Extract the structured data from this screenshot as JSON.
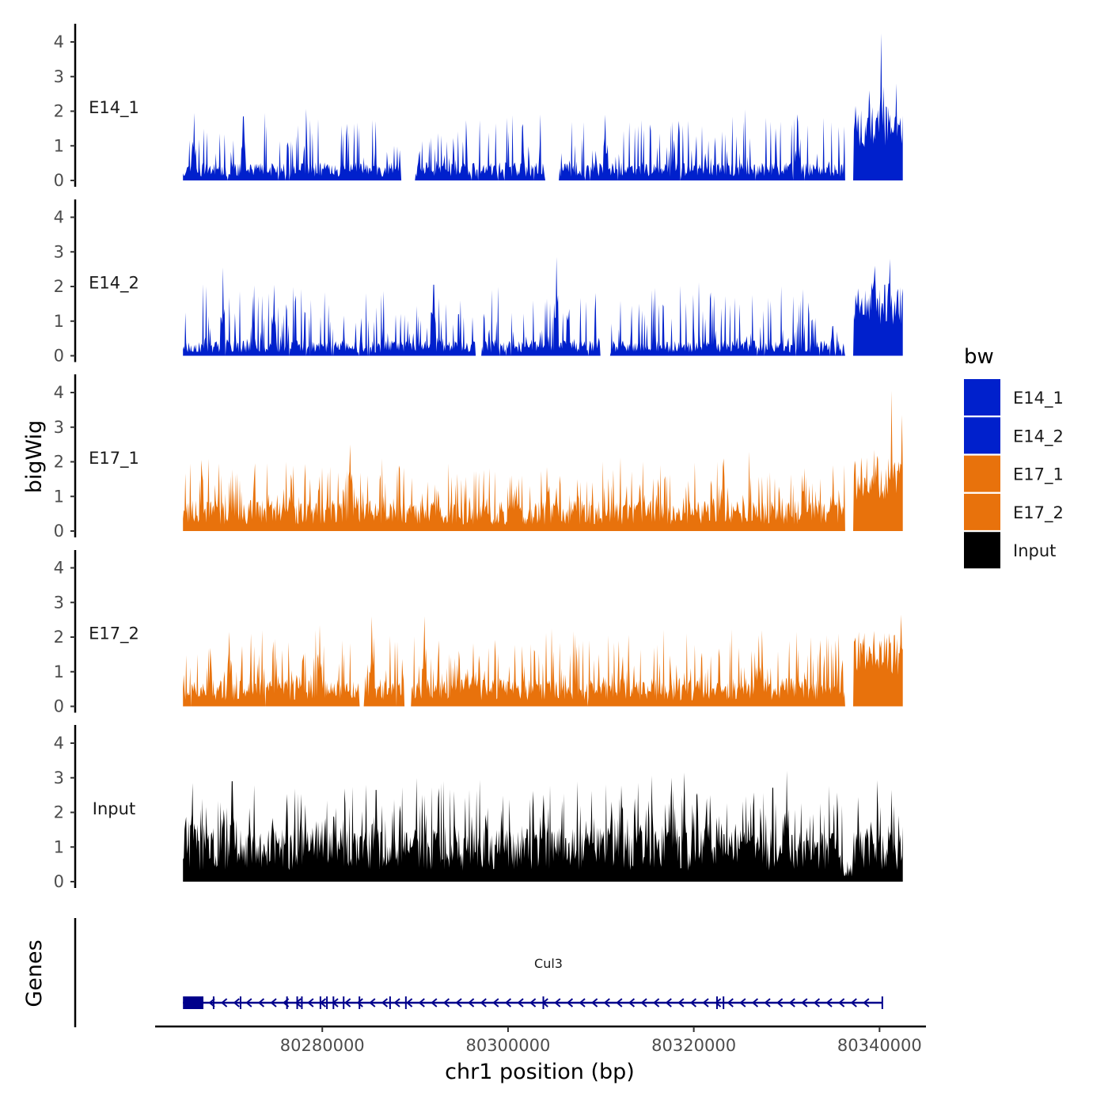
{
  "chart_data": {
    "type": "area",
    "chromosome": "chr1",
    "xlabel": "chr1 position (bp)",
    "ylabel": "bigWig",
    "genes_label": "Genes",
    "region": [
      80265000,
      80342500
    ],
    "xlim": [
      80262000,
      80345000
    ],
    "ylim": [
      0,
      4.5
    ],
    "y_ticks": [
      0,
      1,
      2,
      3,
      4
    ],
    "x_ticks": [
      80280000,
      80300000,
      80320000,
      80340000
    ],
    "legend": {
      "title": "bw",
      "entries": [
        {
          "name": "E14_1",
          "color": "#0020CC"
        },
        {
          "name": "E14_2",
          "color": "#0020CC"
        },
        {
          "name": "E17_1",
          "color": "#E8720C"
        },
        {
          "name": "E17_2",
          "color": "#E8720C"
        },
        {
          "name": "Input",
          "color": "#000000"
        }
      ]
    },
    "series": [
      {
        "name": "E14_1",
        "color": "#0020CC",
        "seed": 11,
        "base": 0.35,
        "spike_max": 1.6,
        "spike_prob": 0.22,
        "gap_prob": 0.05,
        "peaks": [
          [
            80340200,
            4.25
          ],
          [
            80341800,
            2.8
          ],
          [
            80338900,
            2.6
          ],
          [
            80331200,
            1.7
          ],
          [
            80310500,
            1.9
          ],
          [
            80266200,
            1.95
          ],
          [
            80271500,
            1.85
          ]
        ],
        "gaps": [
          [
            80288500,
            80290000
          ],
          [
            80304000,
            80305500
          ],
          [
            80336300,
            80337200
          ]
        ]
      },
      {
        "name": "E14_2",
        "color": "#0020CC",
        "seed": 23,
        "base": 0.3,
        "spike_max": 1.7,
        "spike_prob": 0.24,
        "gap_prob": 0.06,
        "peaks": [
          [
            80305200,
            2.85
          ],
          [
            80341100,
            2.8
          ],
          [
            80269300,
            2.55
          ],
          [
            80339500,
            2.6
          ],
          [
            80292000,
            2.05
          ],
          [
            80274800,
            2.05
          ]
        ],
        "gaps": [
          [
            80296500,
            80297200
          ],
          [
            80310000,
            80311000
          ],
          [
            80336300,
            80337200
          ]
        ]
      },
      {
        "name": "E17_1",
        "color": "#E8720C",
        "seed": 37,
        "base": 0.6,
        "spike_max": 1.4,
        "spike_prob": 0.3,
        "gap_prob": 0.0,
        "peaks": [
          [
            80341300,
            4.05
          ],
          [
            80342400,
            3.35
          ],
          [
            80283000,
            2.5
          ],
          [
            80304200,
            1.85
          ],
          [
            80335000,
            1.9
          ],
          [
            80339400,
            2.35
          ]
        ],
        "gaps": [
          [
            80336300,
            80337200
          ]
        ]
      },
      {
        "name": "E17_2",
        "color": "#E8720C",
        "seed": 53,
        "base": 0.55,
        "spike_max": 1.5,
        "spike_prob": 0.3,
        "gap_prob": 0.02,
        "peaks": [
          [
            80291000,
            2.6
          ],
          [
            80285300,
            2.6
          ],
          [
            80342300,
            2.65
          ],
          [
            80279700,
            2.35
          ],
          [
            80270000,
            2.15
          ],
          [
            80327000,
            2.05
          ]
        ],
        "gaps": [
          [
            80284000,
            80284500
          ],
          [
            80288800,
            80289600
          ],
          [
            80336300,
            80337200
          ]
        ]
      },
      {
        "name": "Input",
        "color": "#000000",
        "seed": 71,
        "base": 1.05,
        "spike_max": 1.6,
        "spike_prob": 0.35,
        "gap_prob": 0.0,
        "peaks": [
          [
            80330000,
            3.2
          ],
          [
            80319000,
            3.15
          ],
          [
            80270300,
            2.9
          ],
          [
            80266000,
            2.85
          ],
          [
            80314000,
            2.85
          ],
          [
            80285800,
            2.65
          ]
        ],
        "gaps": []
      }
    ],
    "gene": {
      "name": "Cul3",
      "strand": "-",
      "start": 80265000,
      "end": 80340300,
      "color": "#00008B",
      "thick_end_block": [
        80265000,
        80267200
      ],
      "exons": [
        80268300,
        80271200,
        80276200,
        80277300,
        80277800,
        80279800,
        80280500,
        80281200,
        80282300,
        80284000,
        80287300,
        80289000,
        80303800,
        80322500,
        80323200,
        80340300
      ]
    }
  }
}
